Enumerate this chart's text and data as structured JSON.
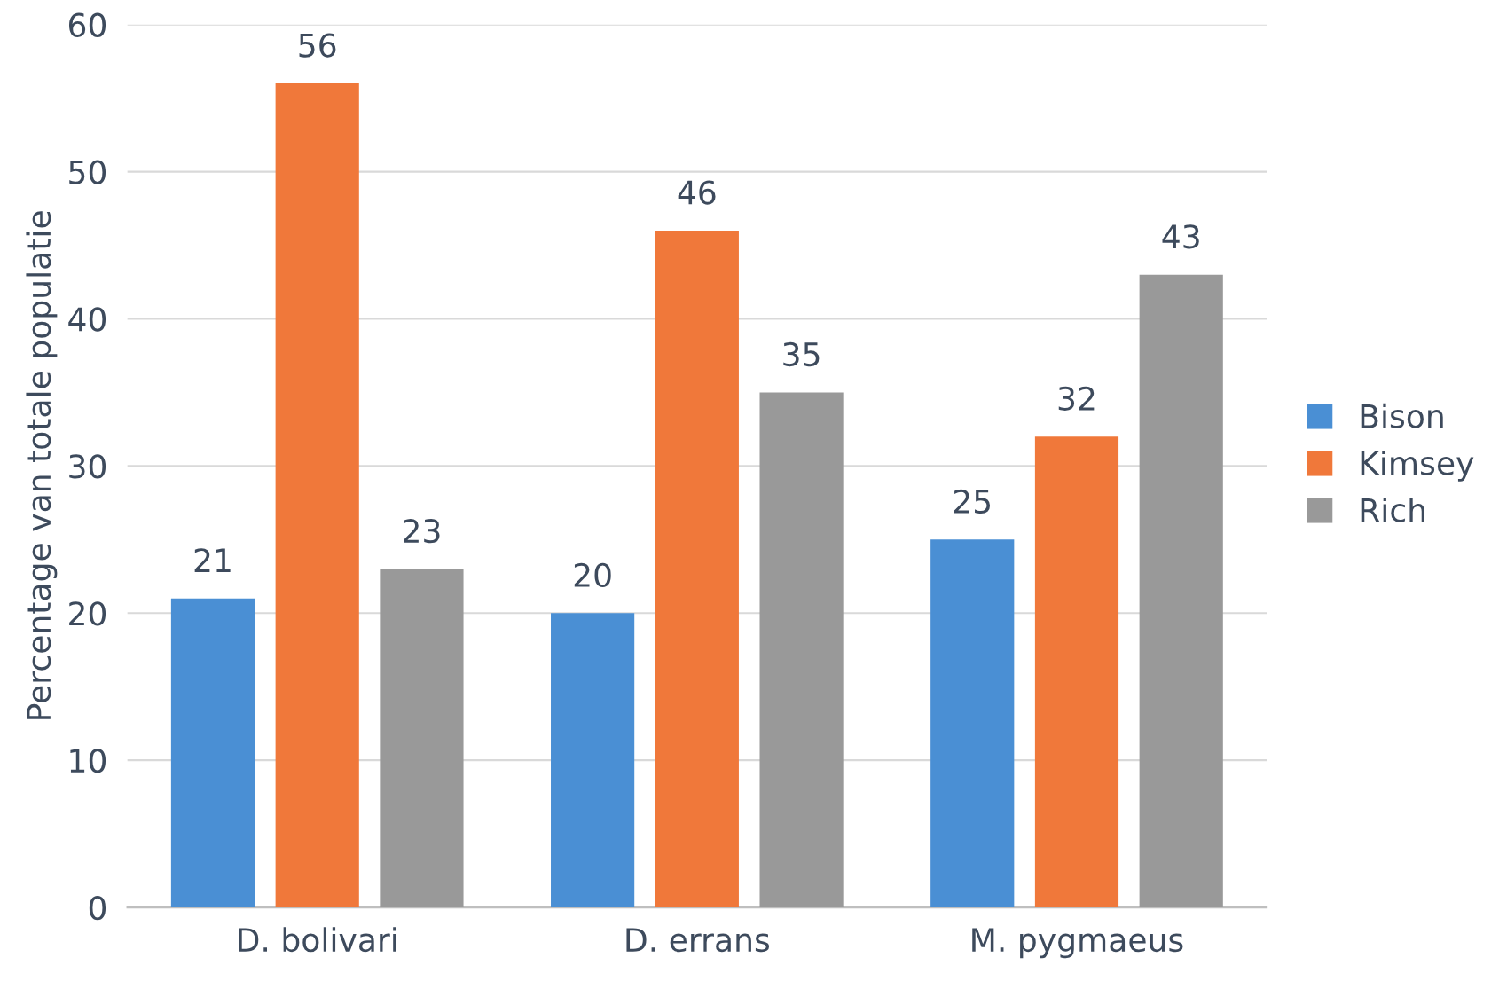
{
  "chart_data": {
    "type": "bar",
    "ylabel": "Percentage van totale populatie",
    "categories": [
      "D. bolivari",
      "D. errans",
      "M. pygmaeus"
    ],
    "series": [
      {
        "name": "Bison",
        "color": "#4a8fd4",
        "values": [
          21,
          20,
          25
        ]
      },
      {
        "name": "Kimsey",
        "color": "#f0783a",
        "values": [
          56,
          46,
          32
        ]
      },
      {
        "name": "Rich",
        "color": "#999999",
        "values": [
          23,
          35,
          43
        ]
      }
    ],
    "ylim": [
      0,
      60
    ],
    "yticks": [
      0,
      10,
      20,
      30,
      40,
      50,
      60
    ],
    "grid": "y",
    "legend": "right",
    "data_labels": true
  }
}
